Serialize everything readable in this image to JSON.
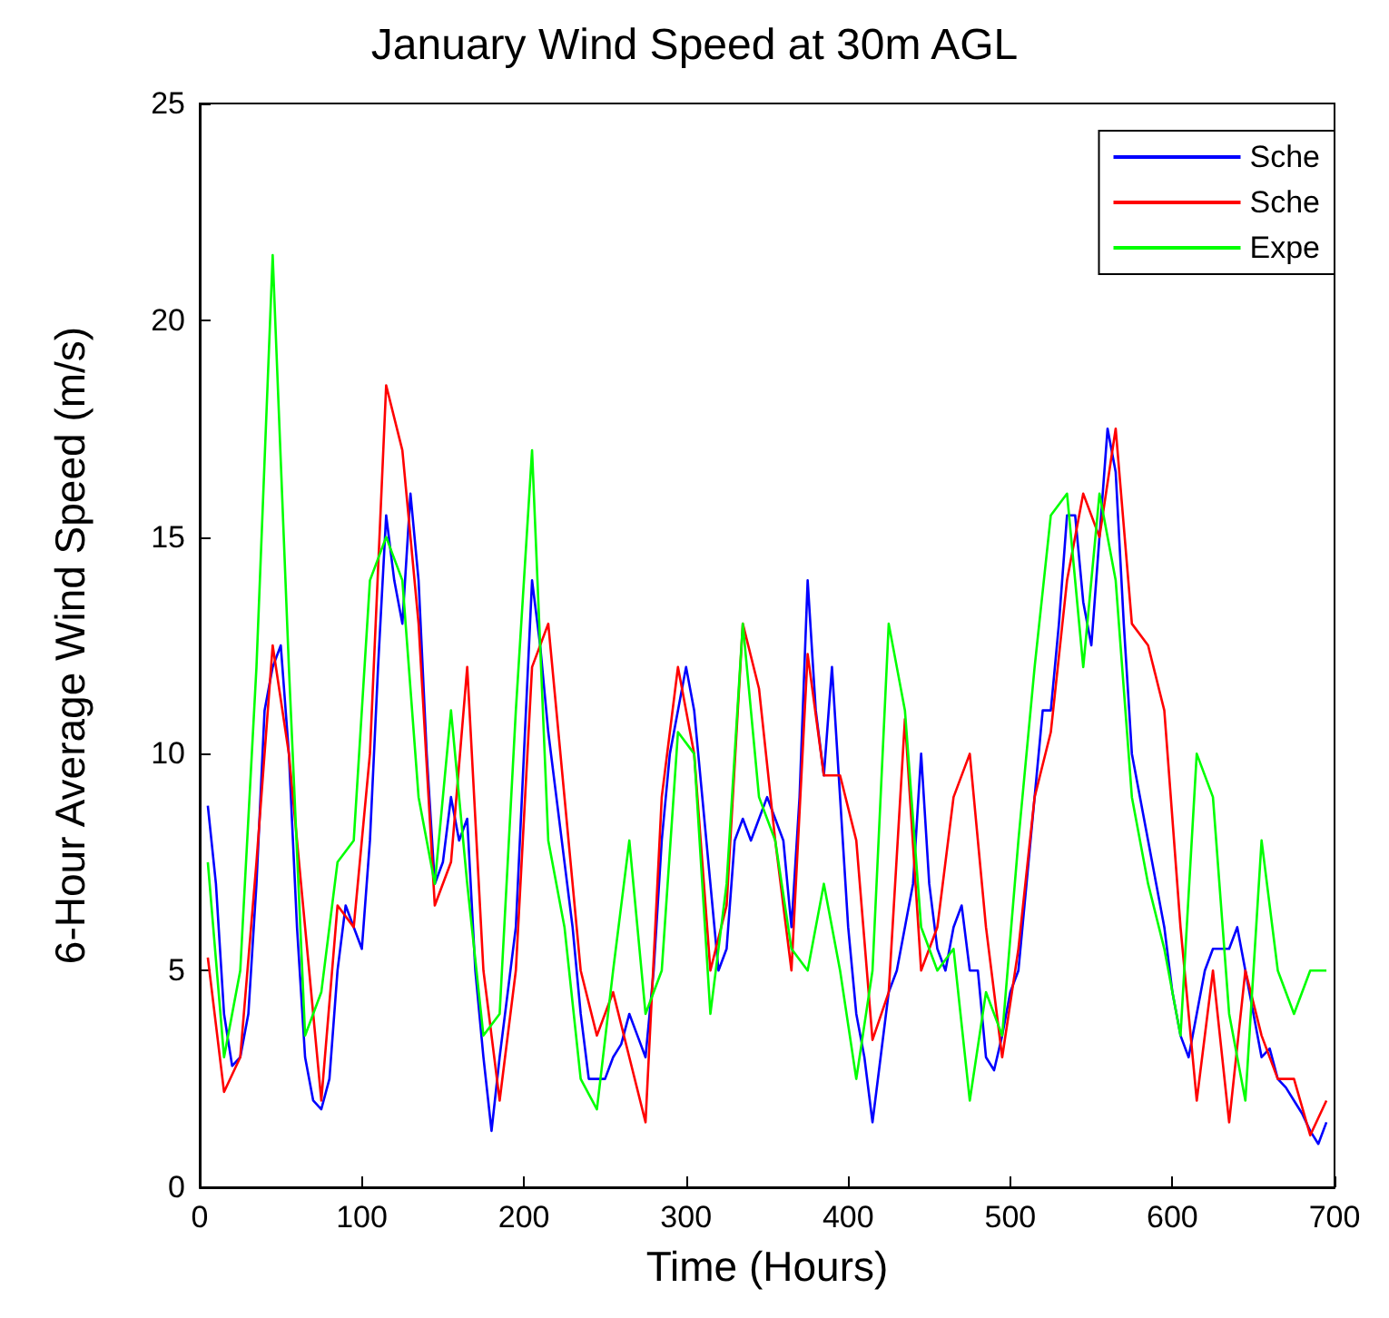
{
  "chart_data": {
    "type": "line",
    "title": "January Wind Speed at 30m AGL",
    "xlabel": "Time (Hours)",
    "ylabel": "6-Hour Average Wind Speed (m/s)",
    "xlim": [
      0,
      700
    ],
    "xticks": [
      0,
      100,
      200,
      300,
      400,
      500,
      600,
      700
    ],
    "ylim": [
      0,
      25
    ],
    "yticks": [
      0,
      5,
      10,
      15,
      20,
      25
    ],
    "grid": false,
    "legend": "top right",
    "marker": "none",
    "line_style": "solid",
    "series": [
      {
        "name": "Sche",
        "color": "#0000ff",
        "x": [
          5,
          10,
          15,
          20,
          25,
          30,
          35,
          40,
          45,
          50,
          55,
          60,
          65,
          70,
          75,
          80,
          85,
          90,
          95,
          100,
          105,
          110,
          115,
          120,
          125,
          130,
          135,
          140,
          145,
          150,
          155,
          160,
          165,
          170,
          175,
          180,
          185,
          190,
          195,
          200,
          205,
          210,
          215,
          220,
          225,
          230,
          235,
          240,
          245,
          250,
          255,
          260,
          265,
          270,
          275,
          280,
          285,
          290,
          295,
          300,
          305,
          310,
          315,
          320,
          325,
          330,
          335,
          340,
          345,
          350,
          355,
          360,
          365,
          370,
          375,
          380,
          385,
          390,
          395,
          400,
          405,
          410,
          415,
          420,
          425,
          430,
          435,
          440,
          445,
          450,
          455,
          460,
          465,
          470,
          475,
          480,
          485,
          490,
          495,
          500,
          505,
          510,
          515,
          520,
          525,
          530,
          535,
          540,
          545,
          550,
          555,
          560,
          565,
          570,
          575,
          580,
          585,
          590,
          595,
          600,
          605,
          610,
          615,
          620,
          625,
          630,
          635,
          640,
          645,
          650,
          655,
          660,
          665,
          670,
          675,
          680,
          685,
          690,
          695
        ],
        "values": [
          8.8,
          7,
          4,
          2.8,
          3,
          4,
          7,
          11,
          12,
          12.5,
          10,
          6,
          3,
          2,
          1.8,
          2.5,
          5,
          6.5,
          6,
          5.5,
          8,
          12,
          15.5,
          14,
          13,
          16,
          14,
          10,
          7,
          7.5,
          9,
          8,
          8.5,
          5,
          3,
          1.3,
          3,
          4.5,
          6,
          10,
          14,
          12.5,
          10.5,
          9,
          7.5,
          6,
          4,
          2.5,
          2.5,
          2.5,
          3,
          3.3,
          4,
          3.5,
          3,
          5,
          8,
          10,
          11,
          12,
          11,
          9,
          7,
          5,
          5.5,
          8,
          8.5,
          8,
          8.5,
          9,
          8.5,
          8,
          6,
          9,
          14,
          11,
          9.5,
          12,
          9,
          6,
          4,
          3,
          1.5,
          3,
          4.5,
          5,
          6,
          7,
          10,
          7,
          5.5,
          5,
          6,
          6.5,
          5,
          5,
          3,
          2.7,
          3.5,
          4.5,
          5,
          7,
          9,
          11,
          11,
          13,
          15.5,
          15.5,
          13.5,
          12.5,
          15,
          17.5,
          16.5,
          13,
          10,
          9,
          8,
          7,
          6,
          4.5,
          3.5,
          3,
          4,
          5,
          5.5,
          5.5,
          5.5,
          6,
          5,
          4,
          3,
          3.2,
          2.5,
          2.3,
          2,
          1.7,
          1.3,
          1,
          1.5
        ]
      },
      {
        "name": "Sche",
        "color": "#ff0000",
        "x": [
          5,
          15,
          25,
          35,
          45,
          55,
          65,
          75,
          85,
          95,
          105,
          115,
          125,
          135,
          145,
          155,
          165,
          175,
          185,
          195,
          205,
          215,
          225,
          235,
          245,
          255,
          265,
          275,
          285,
          295,
          305,
          315,
          325,
          335,
          345,
          355,
          365,
          375,
          385,
          395,
          405,
          415,
          425,
          435,
          445,
          455,
          465,
          475,
          485,
          495,
          505,
          515,
          525,
          535,
          545,
          555,
          565,
          575,
          585,
          595,
          605,
          615,
          625,
          635,
          645,
          655,
          665,
          675,
          685,
          695
        ],
        "values": [
          5.3,
          2.2,
          3,
          7.5,
          12.5,
          10,
          6,
          2,
          6.5,
          6,
          10,
          18.5,
          17,
          13,
          6.5,
          7.5,
          12,
          5,
          2,
          5,
          12,
          13,
          9,
          5,
          3.5,
          4.5,
          3,
          1.5,
          9,
          12,
          10,
          5,
          6.5,
          13,
          11.5,
          8,
          5,
          12.3,
          9.5,
          9.5,
          8,
          3.4,
          4.5,
          10.8,
          5,
          6,
          9,
          10,
          6,
          3,
          5.5,
          9,
          10.5,
          14,
          16,
          15,
          17.5,
          13,
          12.5,
          11,
          6,
          2,
          5,
          1.5,
          5,
          3.5,
          2.5,
          2.5,
          1.2,
          2
        ]
      },
      {
        "name": "Expe",
        "color": "#00ff00",
        "x": [
          5,
          15,
          25,
          35,
          45,
          55,
          65,
          75,
          85,
          95,
          105,
          115,
          125,
          135,
          145,
          155,
          165,
          175,
          185,
          195,
          205,
          215,
          225,
          235,
          245,
          255,
          265,
          275,
          285,
          295,
          305,
          315,
          325,
          335,
          345,
          355,
          365,
          375,
          385,
          395,
          405,
          415,
          425,
          435,
          445,
          455,
          465,
          475,
          485,
          495,
          505,
          515,
          525,
          535,
          545,
          555,
          565,
          575,
          585,
          595,
          605,
          615,
          625,
          635,
          645,
          655,
          665,
          675,
          685,
          695
        ],
        "values": [
          7.5,
          3,
          5,
          12,
          21.5,
          12,
          3.5,
          4.5,
          7.5,
          8,
          14,
          15,
          14,
          9,
          7,
          11,
          7,
          3.5,
          4,
          11,
          17,
          8,
          6,
          2.5,
          1.8,
          5,
          8,
          4,
          5,
          10.5,
          10,
          4,
          7,
          13,
          9,
          8,
          5.5,
          5,
          7,
          5,
          2.5,
          5,
          13,
          11,
          6,
          5,
          5.5,
          2,
          4.5,
          3.5,
          8,
          12,
          15.5,
          16,
          12,
          16,
          14,
          9,
          7,
          5.5,
          3.5,
          10,
          9,
          4,
          2,
          8,
          5,
          4,
          5,
          5
        ]
      }
    ]
  }
}
